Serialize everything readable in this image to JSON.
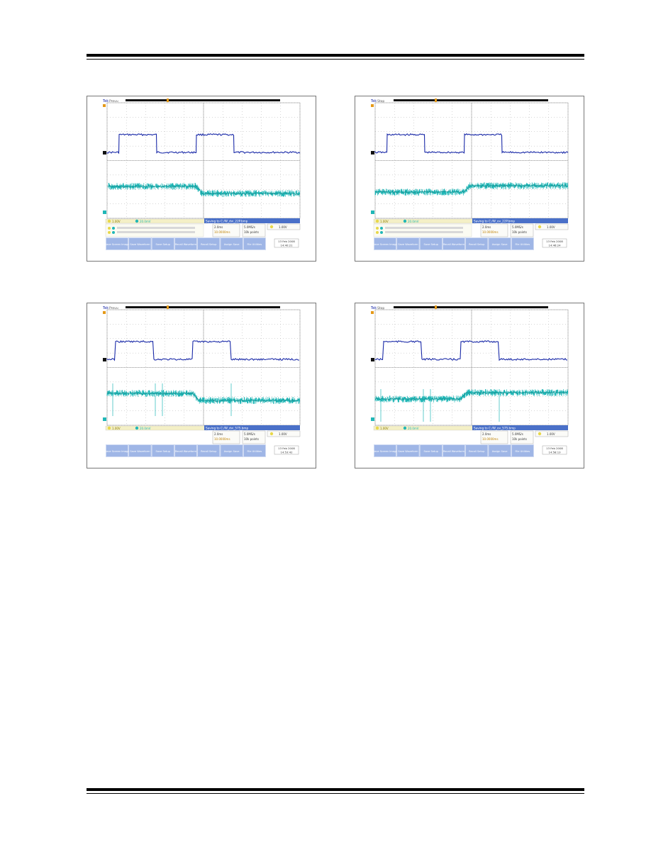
{
  "screenshots": [
    {
      "id": "top-left",
      "brand": "Tek",
      "trig_state": "Prevu",
      "filename": "Saving to C:/W_dvi_22P.bmp",
      "time_div": "2.0ms",
      "trigger_pos": "10.0000ms",
      "sample_rate": "5.0MS/s",
      "record_length": "10k points",
      "trigger_level": "1.00V",
      "date": "13 Feb 2008",
      "time": "14:40:21",
      "ch1_scale": "1.00V",
      "ch2_scale": "20.0mV",
      "has_measurements": true,
      "cyan_step": "down",
      "buttons": [
        "Save Screen Image",
        "Save Waveform",
        "Save Setup",
        "Recall Waveform",
        "Recall Setup",
        "Assign Save",
        "File Utilities"
      ]
    },
    {
      "id": "top-right",
      "brand": "Tek",
      "trig_state": "Stop",
      "filename": "Saving to C:/W_ov_22P.bmp",
      "time_div": "2.0ms",
      "trigger_pos": "10.0000ms",
      "sample_rate": "5.0MS/s",
      "record_length": "10k points",
      "trigger_level": "1.00V",
      "date": "13 Feb 2008",
      "time": "14:46:24",
      "ch1_scale": "1.00V",
      "ch2_scale": "20.0mV",
      "has_measurements": true,
      "cyan_step": "up",
      "buttons": [
        "Save Screen Image",
        "Save Waveform",
        "Save Setup",
        "Recall Waveform",
        "Recall Setup",
        "Assign Save",
        "File Utilities"
      ]
    },
    {
      "id": "bottom-left",
      "brand": "Tek",
      "trig_state": "Prevu",
      "filename": "Saving to C:/W_dvi_575.bmp",
      "time_div": "2.0ms",
      "trigger_pos": "10.0000ms",
      "sample_rate": "5.0MS/s",
      "record_length": "10k points",
      "trigger_level": "1.00V",
      "date": "13 Feb 2008",
      "time": "14:53:42",
      "ch1_scale": "1.00V",
      "ch2_scale": "20.0mV",
      "has_measurements": false,
      "cyan_step": "down",
      "buttons": [
        "Save Screen Image",
        "Save Waveform",
        "Save Setup",
        "Recall Waveform",
        "Recall Setup",
        "Assign Save",
        "File Utilities"
      ]
    },
    {
      "id": "bottom-right",
      "brand": "Tek",
      "trig_state": "Stop",
      "filename": "Saving to C:/W_ov_575.bmp",
      "time_div": "2.0ms",
      "trigger_pos": "10.0000ms",
      "sample_rate": "5.0MS/s",
      "record_length": "10k points",
      "trigger_level": "1.00V",
      "date": "13 Feb 2008",
      "time": "14:58:13",
      "ch1_scale": "1.00V",
      "ch2_scale": "20.0mV",
      "has_measurements": false,
      "cyan_step": "up",
      "buttons": [
        "Save Screen Image",
        "Save Waveform",
        "Save Setup",
        "Recall Waveform",
        "Recall Setup",
        "Assign Save",
        "File Utilities"
      ]
    }
  ],
  "colors": {
    "page_background": "#ffffff",
    "scope_background": "#ffffff",
    "channel1_trace": "#1a2aa8",
    "channel2_trace": "#21b7b7",
    "channel2_dark": "#0d5f5f",
    "info_bar": "#4a70c8",
    "button_bar": "#9fb6e6",
    "record_bar": "#111111",
    "marker_orange": "#e59a1a",
    "grid": "#9a9a9a"
  }
}
